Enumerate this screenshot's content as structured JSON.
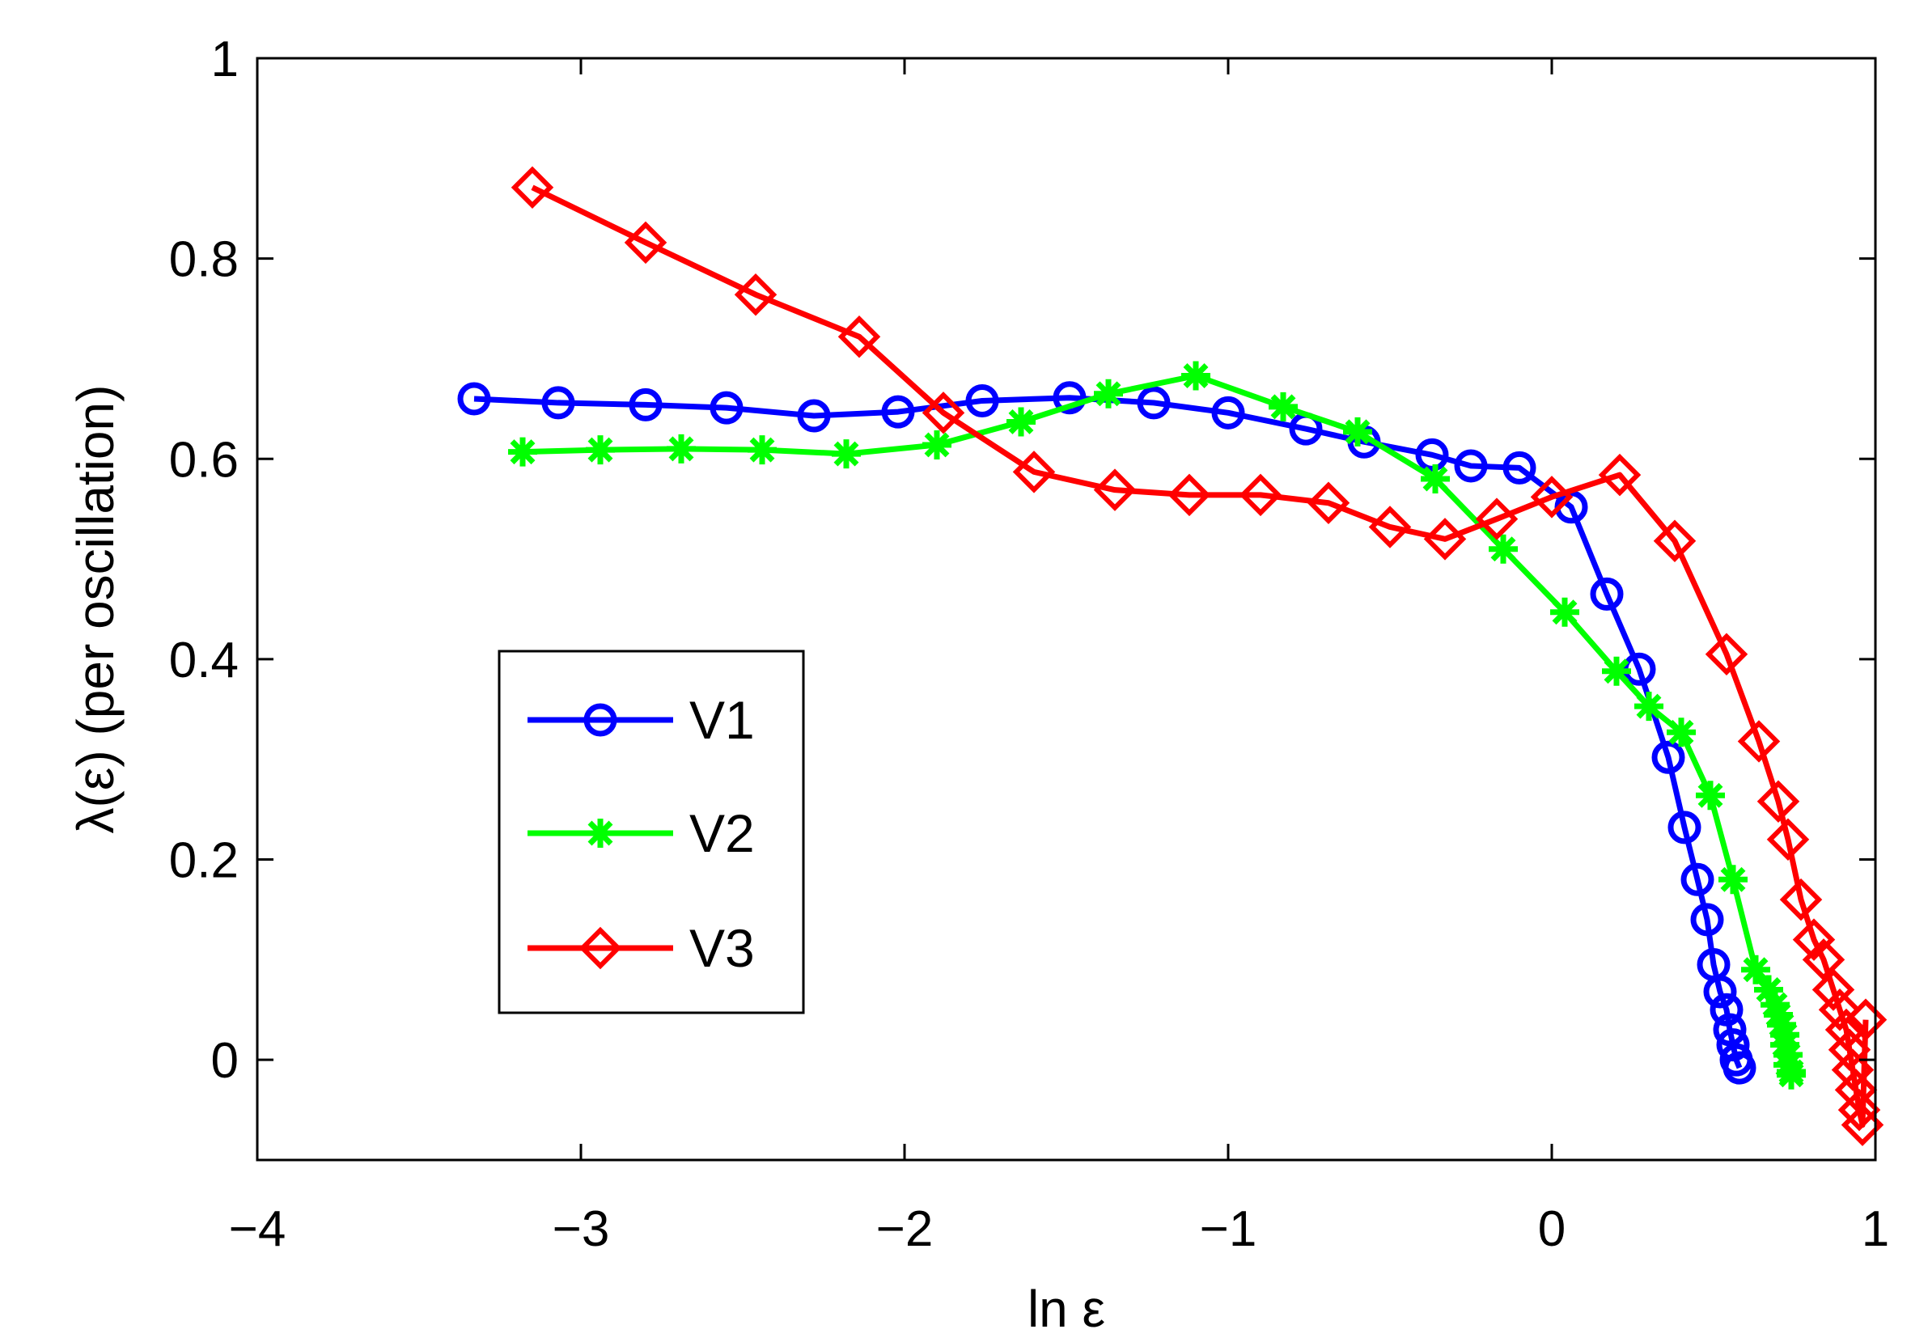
{
  "chart_data": {
    "type": "line",
    "title": "",
    "xlabel": "ln ε",
    "ylabel": "λ(ε) (per oscillation)",
    "xlim": [
      -4,
      1
    ],
    "ylim": [
      -0.1,
      1
    ],
    "xticks": [
      -4,
      -3,
      -2,
      -1,
      0,
      1
    ],
    "xtick_labels": [
      "−4",
      "−3",
      "−2",
      "−1",
      "0",
      "1"
    ],
    "yticks": [
      0,
      0.2,
      0.4,
      0.6,
      0.8,
      1
    ],
    "ytick_labels": [
      "0",
      "0.2",
      "0.4",
      "0.6",
      "0.8",
      "1"
    ],
    "grid": false,
    "legend_position": "center-left",
    "series": [
      {
        "name": "V1",
        "color": "#0000ff",
        "marker": "circle",
        "x": [
          -3.33,
          -3.07,
          -2.8,
          -2.55,
          -2.28,
          -2.02,
          -1.76,
          -1.49,
          -1.23,
          -1.0,
          -0.76,
          -0.58,
          -0.37,
          -0.25,
          -0.1,
          0.06,
          0.17,
          0.27,
          0.36,
          0.41,
          0.45,
          0.48,
          0.5,
          0.52,
          0.54,
          0.55,
          0.56,
          0.57,
          0.58
        ],
        "values": [
          0.66,
          0.656,
          0.654,
          0.651,
          0.643,
          0.647,
          0.658,
          0.661,
          0.656,
          0.646,
          0.63,
          0.617,
          0.604,
          0.593,
          0.591,
          0.552,
          0.465,
          0.39,
          0.302,
          0.232,
          0.18,
          0.14,
          0.095,
          0.068,
          0.05,
          0.03,
          0.015,
          0.0,
          -0.008
        ]
      },
      {
        "name": "V2",
        "color": "#00ff00",
        "marker": "asterisk",
        "x": [
          -3.18,
          -2.94,
          -2.69,
          -2.44,
          -2.18,
          -1.9,
          -1.64,
          -1.37,
          -1.1,
          -0.83,
          -0.6,
          -0.36,
          -0.15,
          0.04,
          0.2,
          0.3,
          0.4,
          0.49,
          0.56,
          0.63,
          0.67,
          0.69,
          0.7,
          0.71,
          0.72,
          0.72,
          0.73,
          0.73,
          0.74,
          0.74
        ],
        "values": [
          0.607,
          0.609,
          0.61,
          0.609,
          0.605,
          0.614,
          0.637,
          0.665,
          0.683,
          0.652,
          0.627,
          0.58,
          0.51,
          0.447,
          0.388,
          0.353,
          0.327,
          0.264,
          0.18,
          0.09,
          0.07,
          0.055,
          0.045,
          0.035,
          0.025,
          0.015,
          0.005,
          -0.005,
          -0.012,
          -0.015
        ]
      },
      {
        "name": "V3",
        "color": "#ff0000",
        "marker": "diamond",
        "x": [
          -3.15,
          -2.8,
          -2.46,
          -2.14,
          -1.88,
          -1.6,
          -1.35,
          -1.12,
          -0.9,
          -0.69,
          -0.5,
          -0.33,
          -0.17,
          0.0,
          0.21,
          0.38,
          0.54,
          0.64,
          0.7,
          0.73,
          0.77,
          0.81,
          0.84,
          0.87,
          0.89,
          0.91,
          0.92,
          0.93,
          0.94,
          0.95,
          0.96,
          0.97
        ],
        "values": [
          0.871,
          0.816,
          0.764,
          0.722,
          0.646,
          0.587,
          0.569,
          0.564,
          0.564,
          0.556,
          0.532,
          0.52,
          0.54,
          0.562,
          0.584,
          0.518,
          0.405,
          0.318,
          0.258,
          0.22,
          0.16,
          0.12,
          0.1,
          0.07,
          0.05,
          0.03,
          0.01,
          -0.01,
          -0.03,
          -0.05,
          -0.065,
          0.04
        ]
      }
    ]
  }
}
